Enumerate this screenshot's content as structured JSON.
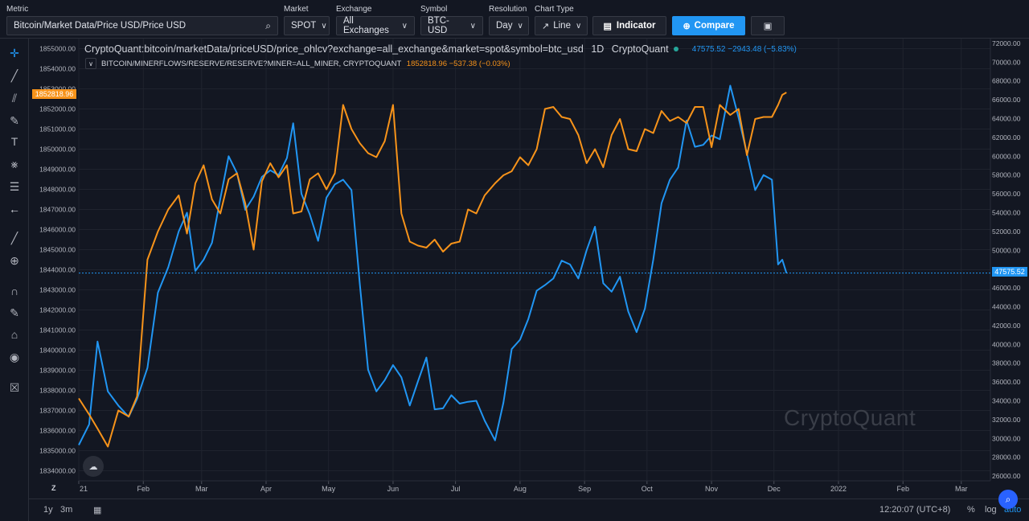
{
  "toolbar": {
    "metric_label": "Metric",
    "metric_value": "Bitcoin/Market Data/Price USD/Price USD",
    "market_label": "Market",
    "market_value": "SPOT",
    "exchange_label": "Exchange",
    "exchange_value": "All Exchanges",
    "symbol_label": "Symbol",
    "symbol_value": "BTC-USD",
    "resolution_label": "Resolution",
    "resolution_value": "Day",
    "chart_type_label": "Chart Type",
    "chart_type_value": "Line",
    "indicator_label": "Indicator",
    "compare_label": "Compare"
  },
  "legend": {
    "main_title": "CryptoQuant:bitcoin/marketData/priceUSD/price_ohlcv?exchange=all_exchange&market=spot&symbol=btc_usd",
    "resolution": "1D",
    "source": "CryptoQuant",
    "btc_values": "47575.52  −2943.48 (−5.83%)",
    "compare_name": "BITCOIN/MINERFLOWS/RESERVE/RESERVE?MINER=ALL_MINER, CRYPTOQUANT",
    "compare_values": "1852818.96  −537.38 (−0.03%)",
    "collapse_icon": "chevron-down-icon"
  },
  "watermark": "CryptoQuant",
  "left_price_tag": "1852818.96",
  "right_price_tag": "47575.52",
  "bottom": {
    "z_label": "Z",
    "range_1y": "1y",
    "range_3m": "3m",
    "time": "12:20:07 (UTC+8)",
    "percent": "%",
    "log": "log",
    "auto": "auto"
  },
  "colors": {
    "background": "#131722",
    "btc_price": "#2196f3",
    "miner_reserve": "#f7931a",
    "compare_button": "#2196f3",
    "grid": "#1f232e"
  },
  "chart_data": {
    "type": "line",
    "x": [
      "2021-01-01",
      "2021-01-06",
      "2021-01-10",
      "2021-01-15",
      "2021-01-20",
      "2021-01-25",
      "2021-01-29",
      "2021-02-03",
      "2021-02-08",
      "2021-02-13",
      "2021-02-18",
      "2021-02-22",
      "2021-02-26",
      "2021-03-02",
      "2021-03-06",
      "2021-03-10",
      "2021-03-14",
      "2021-03-18",
      "2021-03-22",
      "2021-03-26",
      "2021-03-30",
      "2021-04-03",
      "2021-04-07",
      "2021-04-11",
      "2021-04-14",
      "2021-04-18",
      "2021-04-22",
      "2021-04-26",
      "2021-04-30",
      "2021-05-04",
      "2021-05-08",
      "2021-05-12",
      "2021-05-16",
      "2021-05-20",
      "2021-05-24",
      "2021-05-28",
      "2021-06-01",
      "2021-06-05",
      "2021-06-09",
      "2021-06-13",
      "2021-06-17",
      "2021-06-21",
      "2021-06-25",
      "2021-06-29",
      "2021-07-03",
      "2021-07-07",
      "2021-07-11",
      "2021-07-15",
      "2021-07-20",
      "2021-07-24",
      "2021-07-28",
      "2021-08-01",
      "2021-08-05",
      "2021-08-09",
      "2021-08-13",
      "2021-08-17",
      "2021-08-21",
      "2021-08-25",
      "2021-08-29",
      "2021-09-02",
      "2021-09-06",
      "2021-09-10",
      "2021-09-14",
      "2021-09-18",
      "2021-09-22",
      "2021-09-26",
      "2021-09-30",
      "2021-10-04",
      "2021-10-08",
      "2021-10-12",
      "2021-10-16",
      "2021-10-20",
      "2021-10-24",
      "2021-10-28",
      "2021-11-01",
      "2021-11-05",
      "2021-11-10",
      "2021-11-14",
      "2021-11-18",
      "2021-11-22",
      "2021-11-26",
      "2021-11-30",
      "2021-12-03",
      "2021-12-05",
      "2021-12-07"
    ],
    "series": [
      {
        "axis": "right",
        "values": [
          29300,
          31500,
          40300,
          35000,
          33500,
          32300,
          34200,
          37500,
          45500,
          48200,
          52000,
          54000,
          47800,
          49000,
          50800,
          55500,
          60000,
          58200,
          54300,
          55700,
          57800,
          58500,
          58000,
          59800,
          63500,
          56000,
          53800,
          51000,
          55600,
          57000,
          57500,
          56400,
          46500,
          37300,
          35000,
          36200,
          37800,
          36500,
          33500,
          36100,
          38600,
          33100,
          33200,
          34600,
          33700,
          33900,
          34000,
          31900,
          29800,
          33800,
          39500,
          40500,
          42700,
          45700,
          46300,
          47000,
          48900,
          48500,
          47000,
          50000,
          52500,
          46500,
          45600,
          47200,
          43500,
          41300,
          43800,
          49000,
          55000,
          57500,
          58800,
          63800,
          61000,
          61200,
          62200,
          61800,
          67500,
          64100,
          60300,
          56400,
          58000,
          57500,
          48500,
          49000,
          47575.52
        ]
      },
      {
        "axis": "left",
        "values": [
          1837600,
          1836800,
          1836100,
          1835200,
          1837000,
          1836700,
          1837700,
          1844500,
          1845900,
          1847000,
          1847700,
          1845800,
          1848300,
          1849200,
          1847500,
          1846800,
          1848500,
          1848800,
          1847300,
          1845000,
          1848400,
          1849300,
          1848600,
          1849200,
          1846800,
          1846900,
          1848500,
          1848800,
          1848000,
          1848800,
          1852200,
          1851000,
          1850300,
          1849800,
          1849600,
          1850400,
          1852200,
          1846800,
          1845400,
          1845200,
          1845100,
          1845500,
          1844900,
          1845300,
          1845400,
          1847000,
          1846800,
          1847700,
          1848300,
          1848700,
          1848900,
          1849600,
          1849200,
          1850000,
          1852000,
          1852100,
          1851600,
          1851500,
          1850700,
          1849300,
          1850000,
          1849100,
          1850700,
          1851500,
          1850000,
          1849900,
          1851000,
          1850800,
          1851900,
          1851400,
          1851600,
          1851300,
          1852100,
          1852100,
          1850100,
          1852200,
          1851700,
          1852000,
          1849700,
          1851500,
          1851600,
          1851600,
          1852200,
          1852700,
          1852818.96
        ]
      }
    ],
    "x_tick_labels": [
      "21",
      "Feb",
      "Mar",
      "Apr",
      "May",
      "Jun",
      "Jul",
      "Aug",
      "Sep",
      "Oct",
      "Nov",
      "Dec",
      "2022",
      "Feb",
      "Mar"
    ],
    "left_axis_ticks": [
      "1855000.00",
      "1854000.00",
      "1853000.00",
      "1852000.00",
      "1851000.00",
      "1850000.00",
      "1849000.00",
      "1848000.00",
      "1847000.00",
      "1846000.00",
      "1845000.00",
      "1844000.00",
      "1843000.00",
      "1842000.00",
      "1841000.00",
      "1840000.00",
      "1839000.00",
      "1838000.00",
      "1837000.00",
      "1836000.00",
      "1835000.00",
      "1834000.00"
    ],
    "right_axis_ticks": [
      "72000.00",
      "70000.00",
      "68000.00",
      "66000.00",
      "64000.00",
      "62000.00",
      "60000.00",
      "58000.00",
      "56000.00",
      "54000.00",
      "52000.00",
      "50000.00",
      "46000.00",
      "44000.00",
      "42000.00",
      "40000.00",
      "38000.00",
      "36000.00",
      "34000.00",
      "32000.00",
      "30000.00",
      "28000.00",
      "26000.00"
    ],
    "left_ylim": [
      1833500,
      1855500
    ],
    "right_ylim": [
      25500,
      72500
    ],
    "grid": true
  }
}
